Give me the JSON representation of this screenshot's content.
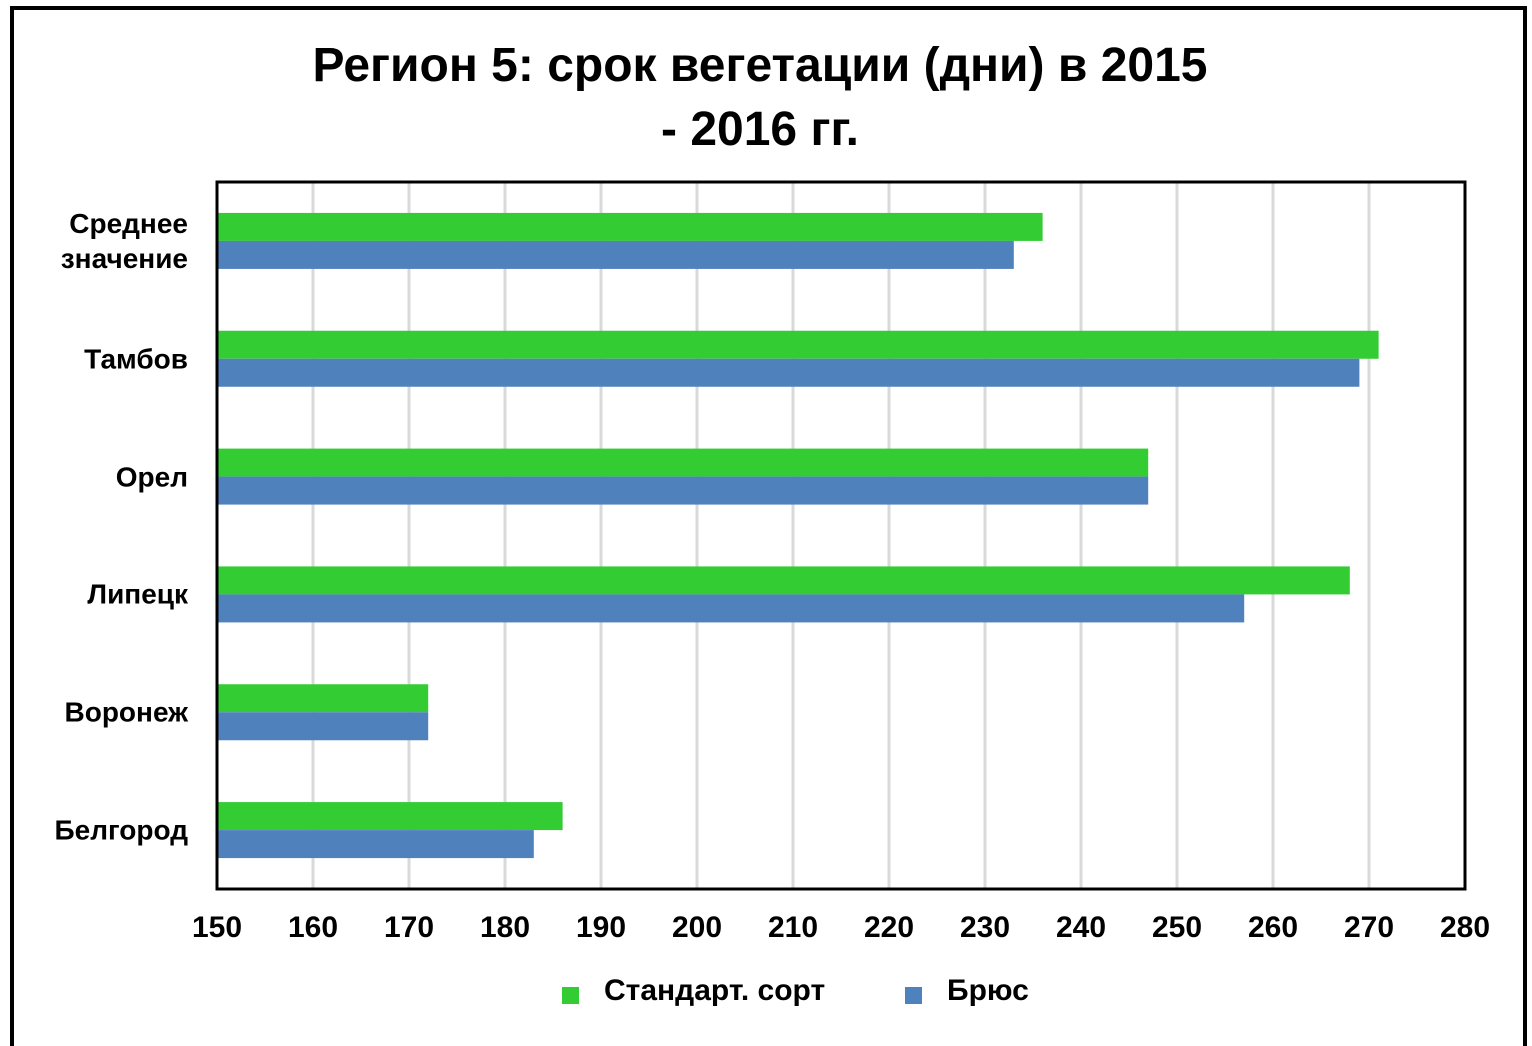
{
  "chart_data": {
    "type": "barh",
    "title": "Регион 5: срок вегетации (дни) в 2015 - 2016 гг.",
    "categories": [
      "Среднее значение",
      "Тамбов",
      "Орел",
      "Липецк",
      "Воронеж",
      "Белгород"
    ],
    "series": [
      {
        "name": "Стандарт. сорт",
        "color": "#33cc33",
        "values": [
          236,
          271,
          247,
          268,
          172,
          186
        ]
      },
      {
        "name": "Брюс",
        "color": "#4f81bd",
        "values": [
          233,
          269,
          247,
          257,
          172,
          183
        ]
      }
    ],
    "xlim": [
      150,
      280
    ],
    "xticks": [
      150,
      160,
      170,
      180,
      190,
      200,
      210,
      220,
      230,
      240,
      250,
      260,
      270,
      280
    ],
    "grid": true,
    "legend": "bottom"
  }
}
